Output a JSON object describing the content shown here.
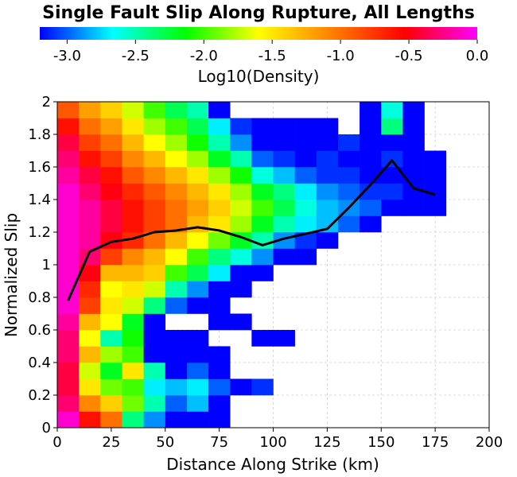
{
  "chart_data": {
    "type": "heatmap",
    "title": "Single Fault Slip Along Rupture, All Lengths",
    "xlabel": "Distance Along Strike (km)",
    "ylabel": "Normalized Slip",
    "colorbar_label": "Log10(Density)",
    "colorbar_ticks": [
      "-3.0",
      "-2.5",
      "-2.0",
      "-1.5",
      "-1.0",
      "-0.5",
      "0.0"
    ],
    "colorbar_range": [
      -3.2,
      0.0
    ],
    "colormap": [
      "#0000ff",
      "#00ffff",
      "#00ff00",
      "#ffff00",
      "#ff8000",
      "#ff0000",
      "#ff00ff"
    ],
    "xlim": [
      0,
      200
    ],
    "ylim": [
      0,
      2
    ],
    "x_ticks": [
      "0",
      "25",
      "50",
      "75",
      "100",
      "125",
      "150",
      "175",
      "200"
    ],
    "y_ticks": [
      "0",
      "0.2",
      "0.4",
      "0.6",
      "0.8",
      "1",
      "1.2",
      "1.4",
      "1.6",
      "1.8",
      "2"
    ],
    "grid": true,
    "bin_width_x": 10,
    "bin_height_y": 0.1,
    "heatmap_note": "columns: x-bin centers 5..175 km; rows: y bins 0-0.1 .. 1.9-2.0; values log10 density, null = empty",
    "x_bins": [
      5,
      15,
      25,
      35,
      45,
      55,
      65,
      75,
      85,
      95,
      105,
      115,
      125,
      135,
      145,
      155,
      165,
      175
    ],
    "y_bins": [
      0.05,
      0.15,
      0.25,
      0.35,
      0.45,
      0.55,
      0.65,
      0.75,
      0.85,
      0.95,
      1.05,
      1.15,
      1.25,
      1.35,
      1.45,
      1.55,
      1.65,
      1.75,
      1.85,
      1.95
    ],
    "z": [
      [
        -0.1,
        -0.6,
        -1.0,
        -2.4,
        -2.9,
        -3.2,
        -3.2,
        -3.2,
        null,
        null,
        null,
        null,
        null,
        null,
        null,
        null,
        null,
        null
      ],
      [
        -0.3,
        -1.1,
        -1.4,
        -1.9,
        -2.5,
        -3.0,
        -2.8,
        -3.2,
        null,
        null,
        null,
        null,
        null,
        null,
        null,
        null,
        null,
        null
      ],
      [
        -0.4,
        -1.5,
        -1.9,
        -2.0,
        -2.7,
        -2.8,
        -2.7,
        -3.0,
        -3.2,
        -3.1,
        null,
        null,
        null,
        null,
        null,
        null,
        null,
        null
      ],
      [
        -0.4,
        -1.7,
        -2.2,
        -1.5,
        -2.5,
        -3.2,
        -3.0,
        -3.2,
        null,
        null,
        null,
        null,
        null,
        null,
        null,
        null,
        null,
        null
      ],
      [
        -0.3,
        -1.3,
        -1.8,
        -2.0,
        -3.2,
        -3.2,
        -3.2,
        -3.2,
        null,
        null,
        null,
        null,
        null,
        null,
        null,
        null,
        null,
        null
      ],
      [
        -0.3,
        -1.6,
        -2.5,
        -2.1,
        -3.2,
        -3.2,
        -3.2,
        null,
        null,
        -3.2,
        -3.2,
        null,
        null,
        null,
        null,
        null,
        null,
        null
      ],
      [
        -0.2,
        -1.3,
        -1.6,
        -2.2,
        -3.2,
        null,
        null,
        -3.2,
        -3.2,
        null,
        null,
        null,
        null,
        null,
        null,
        null,
        null,
        null
      ],
      [
        -0.1,
        -0.8,
        -1.5,
        -1.7,
        -2.4,
        -3.0,
        -3.2,
        -3.2,
        null,
        null,
        null,
        null,
        null,
        null,
        null,
        null,
        null,
        null
      ],
      [
        -0.1,
        -0.7,
        -1.6,
        -1.5,
        -1.7,
        -2.5,
        -2.9,
        -3.2,
        -3.2,
        null,
        null,
        null,
        null,
        null,
        null,
        null,
        null,
        null
      ],
      [
        -0.1,
        -0.5,
        -1.3,
        -1.3,
        -1.4,
        -2.0,
        -2.3,
        -2.7,
        -3.2,
        -3.2,
        null,
        null,
        null,
        null,
        null,
        null,
        null,
        null
      ],
      [
        -0.1,
        -0.3,
        -0.8,
        -1.1,
        -1.3,
        -1.6,
        -2.0,
        -2.4,
        -2.6,
        -2.9,
        -3.2,
        -3.2,
        null,
        null,
        null,
        null,
        null,
        null
      ],
      [
        -0.1,
        -0.2,
        -0.5,
        -0.7,
        -1.0,
        -1.3,
        -1.6,
        -1.9,
        -2.2,
        -2.5,
        -2.9,
        -3.1,
        -3.2,
        null,
        null,
        null,
        null,
        null
      ],
      [
        -0.1,
        -0.2,
        -0.4,
        -0.6,
        -0.8,
        -1.0,
        -1.3,
        -1.5,
        -1.8,
        -2.2,
        -2.5,
        -2.7,
        -2.8,
        -3.0,
        -3.2,
        null,
        null,
        null
      ],
      [
        -0.1,
        -0.2,
        -0.4,
        -0.6,
        -0.8,
        -1.0,
        -1.2,
        -1.4,
        -1.7,
        -2.0,
        -2.3,
        -2.6,
        -2.8,
        -2.9,
        -3.0,
        -3.2,
        -3.2,
        -3.2
      ],
      [
        -0.1,
        -0.3,
        -0.5,
        -0.7,
        -0.9,
        -1.1,
        -1.3,
        -1.5,
        -1.8,
        -2.2,
        -2.4,
        -2.7,
        -2.9,
        -3.0,
        -3.1,
        -3.1,
        -3.2,
        -3.2
      ],
      [
        -0.2,
        -0.4,
        -0.6,
        -0.9,
        -1.1,
        -1.3,
        -1.5,
        -1.8,
        -2.1,
        -2.6,
        -2.8,
        -3.0,
        -3.1,
        -3.1,
        -3.2,
        -3.2,
        -3.2,
        -3.2
      ],
      [
        -0.3,
        -0.6,
        -0.8,
        -1.1,
        -1.3,
        -1.6,
        -1.8,
        -2.2,
        -2.5,
        -3.0,
        -3.1,
        -3.2,
        -3.1,
        -3.2,
        -3.2,
        -3.1,
        -3.2,
        -3.2
      ],
      [
        -0.4,
        -0.8,
        -1.0,
        -1.3,
        -1.6,
        -1.8,
        -2.1,
        -2.5,
        -2.9,
        -3.2,
        -3.2,
        -3.2,
        -3.2,
        -3.1,
        -3.2,
        -3.2,
        -3.2,
        null
      ],
      [
        -0.6,
        -1.0,
        -1.2,
        -1.5,
        -1.8,
        -2.0,
        -2.3,
        -2.7,
        -3.1,
        -3.2,
        -3.2,
        -3.2,
        -3.2,
        null,
        -3.2,
        -2.4,
        -3.2,
        null
      ],
      [
        -0.9,
        -1.2,
        -1.4,
        -1.7,
        -2.0,
        -2.3,
        -2.5,
        -3.2,
        null,
        null,
        null,
        null,
        null,
        null,
        -3.2,
        -2.6,
        -3.2,
        null
      ]
    ],
    "series": [
      {
        "x": [
          5,
          15,
          25,
          35,
          45,
          55,
          65,
          75,
          85,
          95,
          105,
          115,
          125,
          135,
          145,
          155,
          165,
          175
        ],
        "y": [
          0.78,
          1.08,
          1.14,
          1.16,
          1.2,
          1.21,
          1.23,
          1.21,
          1.17,
          1.12,
          1.16,
          1.19,
          1.22,
          1.35,
          1.49,
          1.64,
          1.47,
          1.43
        ],
        "color": "#000000"
      }
    ]
  }
}
